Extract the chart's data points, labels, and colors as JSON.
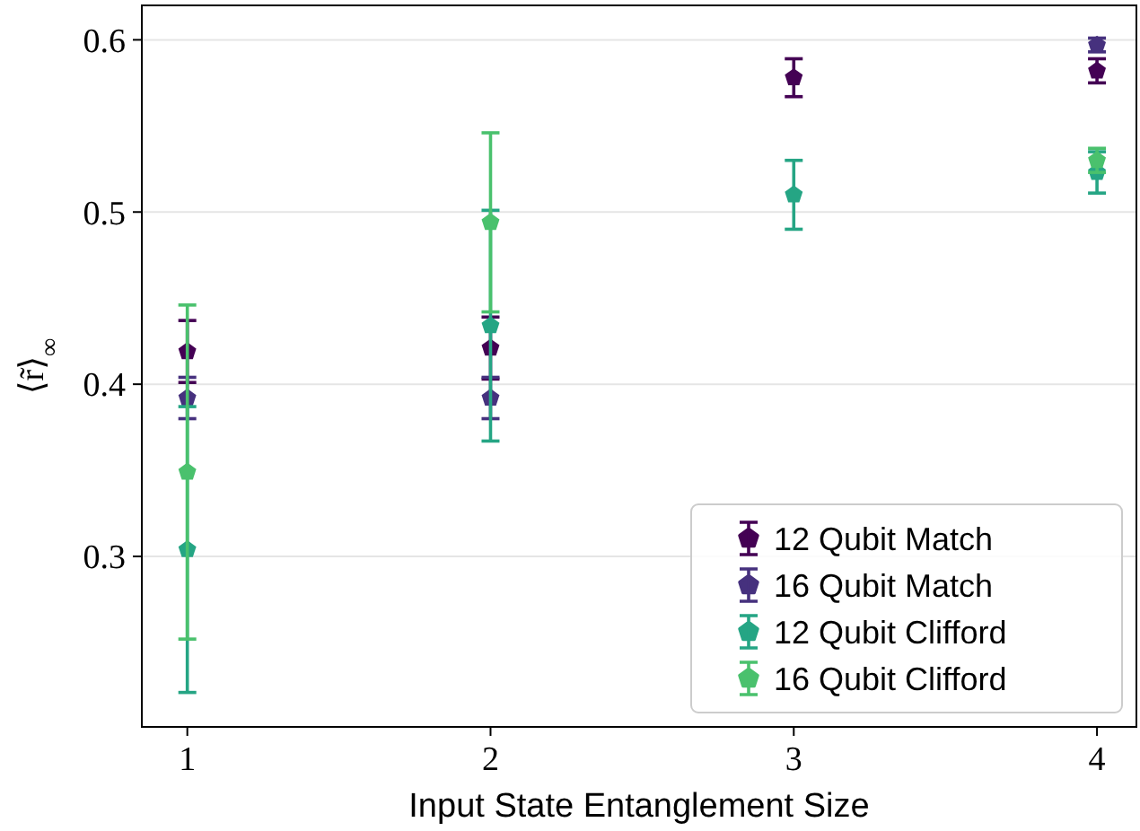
{
  "chart_data": {
    "type": "scatter",
    "xlabel": "Input State Entanglement Size",
    "ylabel": "⟨r̃⟩$_{∞}$",
    "x": [
      1,
      2,
      3,
      4
    ],
    "series": [
      {
        "name": "12 Qubit Match",
        "color": "#440154",
        "values": [
          0.419,
          0.421,
          0.578,
          0.582
        ],
        "errors": [
          0.018,
          0.018,
          0.011,
          0.007
        ]
      },
      {
        "name": "16 Qubit Match",
        "color": "#46317e",
        "values": [
          0.392,
          0.392,
          null,
          0.597
        ],
        "errors": [
          0.012,
          0.012,
          null,
          0.004
        ]
      },
      {
        "name": "12 Qubit Clifford",
        "color": "#25a584",
        "values": [
          0.304,
          0.434,
          0.51,
          0.523
        ],
        "errors": [
          0.083,
          0.067,
          0.02,
          0.012
        ]
      },
      {
        "name": "16 Qubit Clifford",
        "color": "#4ac16d",
        "values": [
          0.349,
          0.494,
          null,
          0.53
        ],
        "errors": [
          0.097,
          0.052,
          null,
          0.007
        ]
      }
    ],
    "xlim": [
      0.85,
      4.13
    ],
    "ylim": [
      0.201,
      0.62
    ],
    "xticks": [
      1,
      2,
      3,
      4
    ],
    "yticks": [
      0.3,
      0.4,
      0.5,
      0.6
    ],
    "grid": "y",
    "legend": "bottom right"
  }
}
